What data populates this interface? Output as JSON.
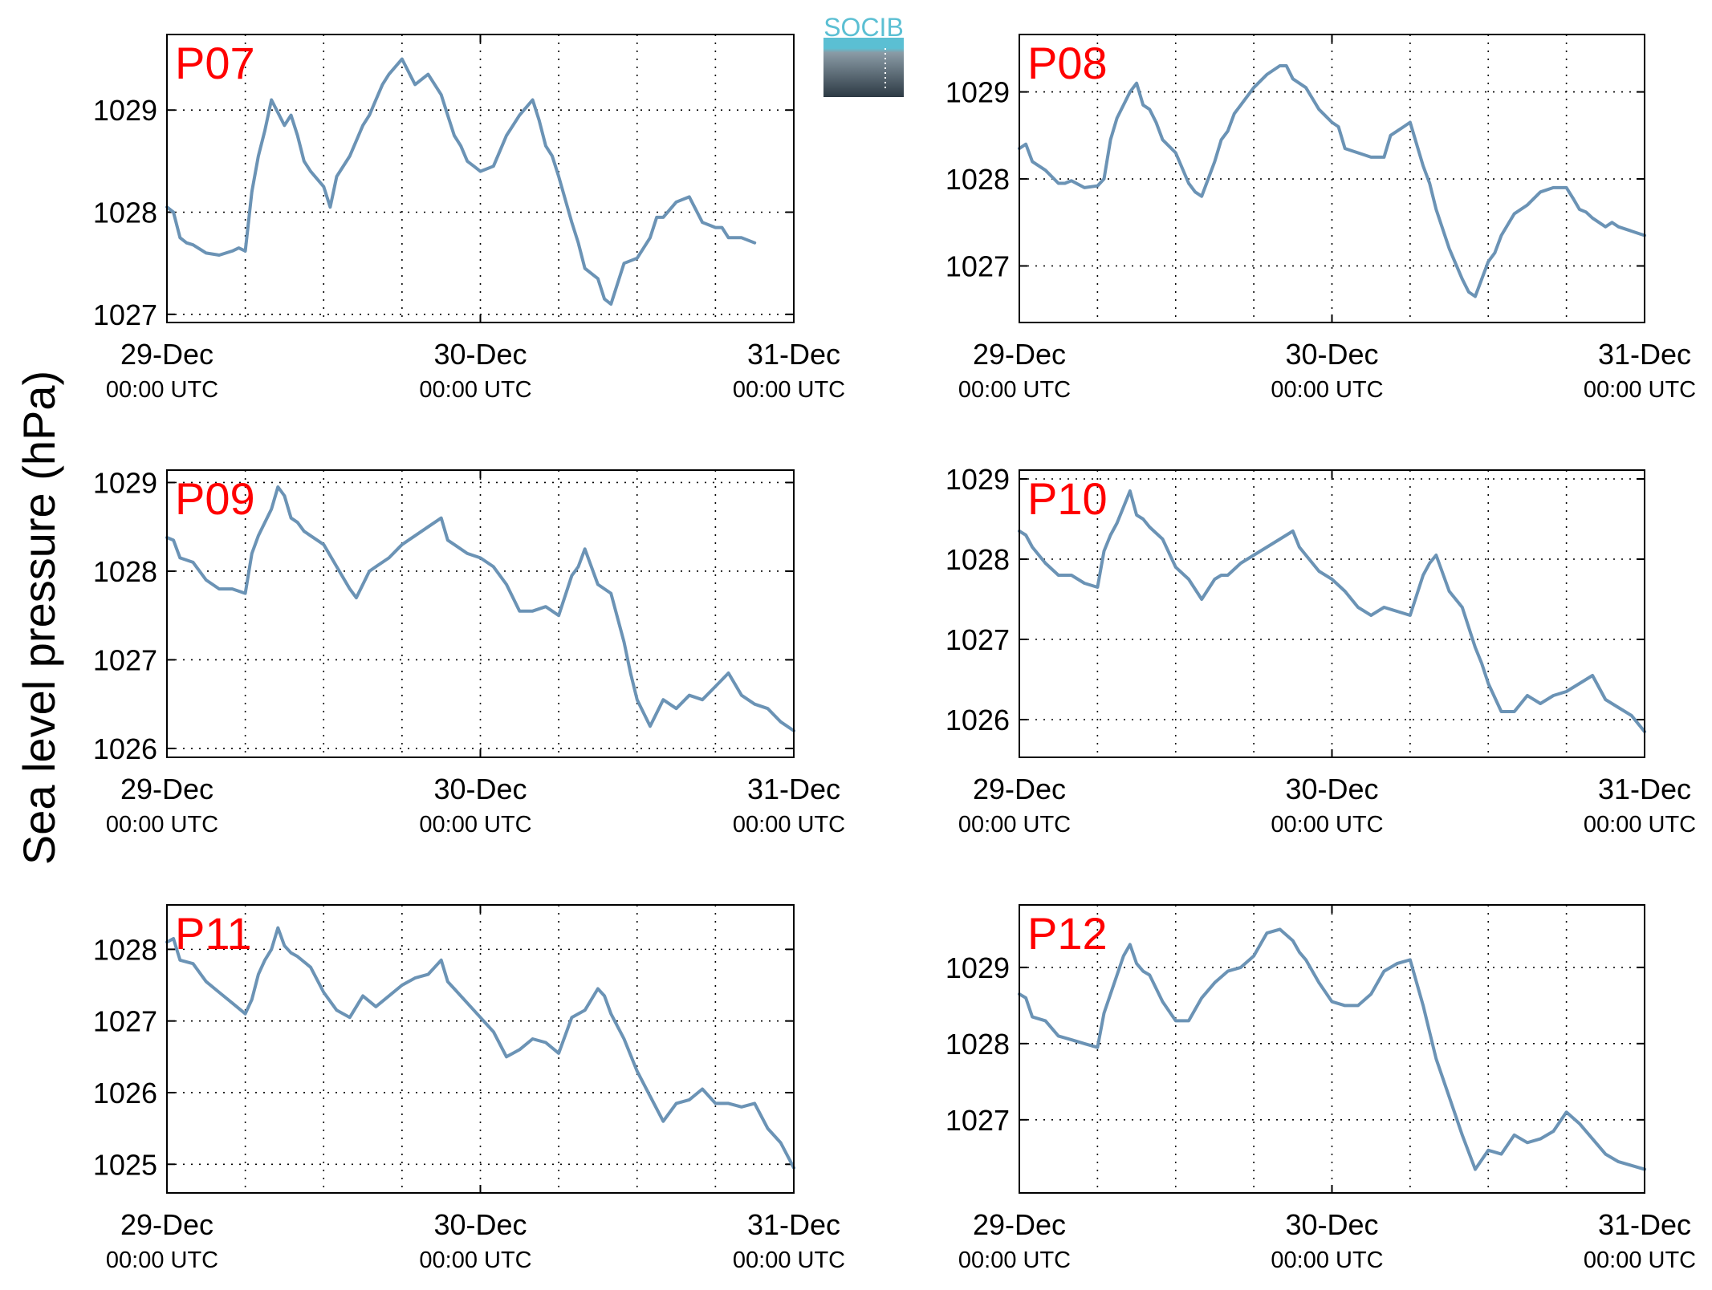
{
  "figure": {
    "ylabel": "Sea level pressure (hPa)",
    "logo_text": "SOCIB",
    "colors": {
      "line": "#6b93b5",
      "panel_label": "#ff0000",
      "logo_top": "#5bbfd3",
      "logo_bottom": "#2d3a44"
    }
  },
  "chart_data": [
    {
      "type": "line",
      "panel_label": "P07",
      "x_ticks": [
        {
          "top": "29-Dec",
          "bottom": "00:00 UTC"
        },
        {
          "top": "30-Dec",
          "bottom": "00:00 UTC"
        },
        {
          "top": "31-Dec",
          "bottom": "00:00 UTC"
        }
      ],
      "x_unit": "hours since 29-Dec 00:00 UTC",
      "xlim": [
        0,
        48
      ],
      "ylim": [
        1026.92,
        1029.74
      ],
      "yticks": [
        1027,
        1028,
        1029
      ],
      "grid": true,
      "x": [
        0,
        0.5,
        1,
        1.5,
        2,
        3,
        4,
        5,
        5.5,
        6,
        6.5,
        7,
        7.5,
        8,
        9,
        9.5,
        10,
        10.5,
        11,
        12,
        12.5,
        13,
        14,
        15,
        15.5,
        16,
        16.5,
        17,
        18,
        19,
        20,
        21,
        21.5,
        22,
        22.5,
        23,
        23.5,
        24,
        25,
        26,
        27,
        28,
        28.5,
        29,
        29.5,
        30,
        31,
        31.5,
        32,
        33,
        33.5,
        34,
        35,
        36,
        37,
        37.5,
        38,
        39,
        40,
        41,
        42,
        42.5,
        43,
        44,
        45
      ],
      "y": [
        1028.05,
        1028.0,
        1027.75,
        1027.7,
        1027.68,
        1027.6,
        1027.58,
        1027.62,
        1027.65,
        1027.62,
        1028.2,
        1028.55,
        1028.8,
        1029.1,
        1028.85,
        1028.95,
        1028.75,
        1028.5,
        1028.4,
        1028.25,
        1028.05,
        1028.35,
        1028.55,
        1028.85,
        1028.95,
        1029.1,
        1029.25,
        1029.35,
        1029.5,
        1029.25,
        1029.35,
        1029.15,
        1028.95,
        1028.75,
        1028.65,
        1028.5,
        1028.45,
        1028.4,
        1028.45,
        1028.75,
        1028.95,
        1029.1,
        1028.9,
        1028.65,
        1028.55,
        1028.35,
        1027.9,
        1027.7,
        1027.45,
        1027.35,
        1027.15,
        1027.1,
        1027.5,
        1027.55,
        1027.75,
        1027.95,
        1027.95,
        1028.1,
        1028.15,
        1027.9,
        1027.85,
        1027.85,
        1027.75,
        1027.75,
        1027.7
      ]
    },
    {
      "type": "line",
      "panel_label": "P08",
      "x_ticks": [
        {
          "top": "29-Dec",
          "bottom": "00:00 UTC"
        },
        {
          "top": "30-Dec",
          "bottom": "00:00 UTC"
        },
        {
          "top": "31-Dec",
          "bottom": "00:00 UTC"
        }
      ],
      "x_unit": "hours since 29-Dec 00:00 UTC",
      "xlim": [
        0,
        48
      ],
      "ylim": [
        1026.35,
        1029.66
      ],
      "yticks": [
        1027,
        1028,
        1029
      ],
      "grid": true,
      "x": [
        0,
        0.5,
        1,
        2,
        3,
        3.5,
        4,
        5,
        6,
        6.5,
        7,
        7.5,
        8,
        8.5,
        9,
        9.5,
        10,
        10.5,
        11,
        12,
        13,
        13.5,
        14,
        15,
        15.5,
        16,
        16.5,
        17,
        18,
        19,
        20,
        20.5,
        21,
        22,
        23,
        24,
        24.5,
        25,
        26,
        27,
        28,
        28.5,
        29,
        29.5,
        30,
        31,
        31.5,
        32,
        33,
        34,
        34.5,
        35,
        36,
        36.5,
        37,
        38,
        39,
        40,
        41,
        42,
        42.5,
        43,
        43.5,
        44,
        45,
        45.5,
        46,
        47,
        48
      ],
      "y": [
        1028.35,
        1028.4,
        1028.2,
        1028.1,
        1027.95,
        1027.95,
        1027.98,
        1027.9,
        1027.92,
        1028.0,
        1028.45,
        1028.7,
        1028.85,
        1029.0,
        1029.1,
        1028.85,
        1028.8,
        1028.65,
        1028.45,
        1028.3,
        1027.95,
        1027.85,
        1027.8,
        1028.2,
        1028.45,
        1028.55,
        1028.75,
        1028.85,
        1029.05,
        1029.2,
        1029.3,
        1029.3,
        1029.15,
        1029.05,
        1028.8,
        1028.65,
        1028.6,
        1028.35,
        1028.3,
        1028.25,
        1028.25,
        1028.5,
        1028.55,
        1028.6,
        1028.65,
        1028.15,
        1027.95,
        1027.65,
        1027.2,
        1026.85,
        1026.7,
        1026.65,
        1027.05,
        1027.15,
        1027.35,
        1027.6,
        1027.7,
        1027.85,
        1027.9,
        1027.9,
        1027.78,
        1027.65,
        1027.62,
        1027.55,
        1027.45,
        1027.5,
        1027.45,
        1027.4,
        1027.35
      ]
    },
    {
      "type": "line",
      "panel_label": "P09",
      "x_ticks": [
        {
          "top": "29-Dec",
          "bottom": "00:00 UTC"
        },
        {
          "top": "30-Dec",
          "bottom": "00:00 UTC"
        },
        {
          "top": "31-Dec",
          "bottom": "00:00 UTC"
        }
      ],
      "x_unit": "hours since 29-Dec 00:00 UTC",
      "xlim": [
        0,
        48
      ],
      "ylim": [
        1025.9,
        1029.14
      ],
      "yticks": [
        1026,
        1027,
        1028,
        1029
      ],
      "grid": true,
      "x": [
        0,
        0.5,
        1,
        2,
        3,
        4,
        5,
        6,
        6.5,
        7,
        7.5,
        8,
        8.5,
        9,
        9.5,
        10,
        10.5,
        11,
        12,
        13,
        14,
        14.5,
        15,
        15.5,
        16,
        17,
        18,
        19,
        20,
        21,
        21.5,
        22,
        23,
        24,
        25,
        26,
        27,
        28,
        29,
        30,
        31,
        31.5,
        32,
        33,
        34,
        35,
        35.5,
        36,
        37,
        38,
        39,
        40,
        41,
        42,
        43,
        44,
        45,
        46,
        47,
        48
      ],
      "y": [
        1028.38,
        1028.35,
        1028.15,
        1028.1,
        1027.9,
        1027.8,
        1027.8,
        1027.75,
        1028.2,
        1028.4,
        1028.55,
        1028.7,
        1028.95,
        1028.85,
        1028.6,
        1028.55,
        1028.45,
        1028.4,
        1028.3,
        1028.05,
        1027.8,
        1027.7,
        1027.85,
        1028.0,
        1028.05,
        1028.15,
        1028.3,
        1028.4,
        1028.5,
        1028.6,
        1028.35,
        1028.3,
        1028.2,
        1028.15,
        1028.05,
        1027.85,
        1027.55,
        1027.55,
        1027.6,
        1027.5,
        1027.95,
        1028.05,
        1028.25,
        1027.85,
        1027.75,
        1027.2,
        1026.85,
        1026.55,
        1026.25,
        1026.55,
        1026.45,
        1026.6,
        1026.55,
        1026.7,
        1026.85,
        1026.6,
        1026.5,
        1026.45,
        1026.3,
        1026.2
      ]
    },
    {
      "type": "line",
      "panel_label": "P10",
      "x_ticks": [
        {
          "top": "29-Dec",
          "bottom": "00:00 UTC"
        },
        {
          "top": "30-Dec",
          "bottom": "00:00 UTC"
        },
        {
          "top": "31-Dec",
          "bottom": "00:00 UTC"
        }
      ],
      "x_unit": "hours since 29-Dec 00:00 UTC",
      "xlim": [
        0,
        48
      ],
      "ylim": [
        1025.53,
        1029.11
      ],
      "yticks": [
        1026,
        1027,
        1028,
        1029
      ],
      "grid": true,
      "x": [
        0,
        0.5,
        1,
        2,
        3,
        4,
        5,
        6,
        6.5,
        7,
        7.5,
        8,
        8.5,
        9,
        9.5,
        10,
        11,
        12,
        13,
        14,
        15,
        15.5,
        16,
        17,
        18,
        19,
        20,
        21,
        21.5,
        22,
        23,
        24,
        25,
        26,
        27,
        28,
        29,
        30,
        31,
        31.5,
        32,
        33,
        34,
        35,
        35.5,
        36,
        37,
        38,
        39,
        40,
        41,
        42,
        43,
        44,
        45,
        46,
        47,
        48
      ],
      "y": [
        1028.35,
        1028.3,
        1028.15,
        1027.95,
        1027.8,
        1027.8,
        1027.7,
        1027.65,
        1028.1,
        1028.3,
        1028.45,
        1028.65,
        1028.85,
        1028.55,
        1028.5,
        1028.4,
        1028.25,
        1027.9,
        1027.75,
        1027.5,
        1027.75,
        1027.8,
        1027.8,
        1027.95,
        1028.05,
        1028.15,
        1028.25,
        1028.35,
        1028.15,
        1028.05,
        1027.85,
        1027.75,
        1027.6,
        1027.4,
        1027.3,
        1027.4,
        1027.35,
        1027.3,
        1027.8,
        1027.95,
        1028.05,
        1027.6,
        1027.4,
        1026.9,
        1026.7,
        1026.45,
        1026.1,
        1026.1,
        1026.3,
        1026.2,
        1026.3,
        1026.35,
        1026.45,
        1026.55,
        1026.25,
        1026.15,
        1026.05,
        1025.85
      ]
    },
    {
      "type": "line",
      "panel_label": "P11",
      "x_ticks": [
        {
          "top": "29-Dec",
          "bottom": "00:00 UTC"
        },
        {
          "top": "30-Dec",
          "bottom": "00:00 UTC"
        },
        {
          "top": "31-Dec",
          "bottom": "00:00 UTC"
        }
      ],
      "x_unit": "hours since 29-Dec 00:00 UTC",
      "xlim": [
        0,
        48
      ],
      "ylim": [
        1024.6,
        1028.62
      ],
      "yticks": [
        1025,
        1026,
        1027,
        1028
      ],
      "grid": true,
      "x": [
        0,
        0.5,
        1,
        2,
        3,
        4,
        5,
        6,
        6.5,
        7,
        7.5,
        8,
        8.5,
        9,
        9.5,
        10,
        11,
        12,
        13,
        14,
        15,
        16,
        17,
        18,
        19,
        20,
        21,
        21.5,
        22,
        23,
        24,
        25,
        26,
        27,
        28,
        29,
        30,
        31,
        32,
        33,
        33.5,
        34,
        35,
        36,
        37,
        38,
        39,
        40,
        41,
        42,
        43,
        44,
        45,
        46,
        47,
        48
      ],
      "y": [
        1028.1,
        1028.15,
        1027.85,
        1027.8,
        1027.55,
        1027.4,
        1027.25,
        1027.1,
        1027.3,
        1027.65,
        1027.85,
        1028.0,
        1028.3,
        1028.05,
        1027.95,
        1027.9,
        1027.75,
        1027.4,
        1027.15,
        1027.05,
        1027.35,
        1027.2,
        1027.35,
        1027.5,
        1027.6,
        1027.65,
        1027.85,
        1027.55,
        1027.45,
        1027.25,
        1027.05,
        1026.85,
        1026.5,
        1026.6,
        1026.75,
        1026.7,
        1026.55,
        1027.05,
        1027.15,
        1027.45,
        1027.35,
        1027.1,
        1026.75,
        1026.3,
        1025.95,
        1025.6,
        1025.85,
        1025.9,
        1026.05,
        1025.85,
        1025.85,
        1025.8,
        1025.85,
        1025.5,
        1025.3,
        1024.95
      ]
    },
    {
      "type": "line",
      "panel_label": "P12",
      "x_ticks": [
        {
          "top": "29-Dec",
          "bottom": "00:00 UTC"
        },
        {
          "top": "30-Dec",
          "bottom": "00:00 UTC"
        },
        {
          "top": "31-Dec",
          "bottom": "00:00 UTC"
        }
      ],
      "x_unit": "hours since 29-Dec 00:00 UTC",
      "xlim": [
        0,
        48
      ],
      "ylim": [
        1026.04,
        1029.82
      ],
      "yticks": [
        1027,
        1028,
        1029
      ],
      "grid": true,
      "x": [
        0,
        0.5,
        1,
        2,
        3,
        4,
        5,
        6,
        6.5,
        7,
        7.5,
        8,
        8.5,
        9,
        9.5,
        10,
        11,
        12,
        13,
        14,
        15,
        16,
        17,
        18,
        19,
        20,
        21,
        21.5,
        22,
        23,
        24,
        25,
        26,
        27,
        28,
        29,
        30,
        31,
        32,
        33,
        34,
        35,
        36,
        37,
        38,
        39,
        40,
        41,
        42,
        43,
        44,
        45,
        46,
        47,
        48
      ],
      "y": [
        1028.65,
        1028.6,
        1028.35,
        1028.3,
        1028.1,
        1028.05,
        1028.0,
        1027.95,
        1028.4,
        1028.65,
        1028.9,
        1029.15,
        1029.3,
        1029.05,
        1028.95,
        1028.9,
        1028.55,
        1028.3,
        1028.3,
        1028.6,
        1028.8,
        1028.95,
        1029.0,
        1029.15,
        1029.45,
        1029.5,
        1029.35,
        1029.2,
        1029.1,
        1028.8,
        1028.55,
        1028.5,
        1028.5,
        1028.65,
        1028.95,
        1029.05,
        1029.1,
        1028.5,
        1027.8,
        1027.3,
        1026.8,
        1026.35,
        1026.6,
        1026.55,
        1026.8,
        1026.7,
        1026.75,
        1026.85,
        1027.1,
        1026.95,
        1026.75,
        1026.55,
        1026.45,
        1026.4,
        1026.35
      ]
    }
  ]
}
